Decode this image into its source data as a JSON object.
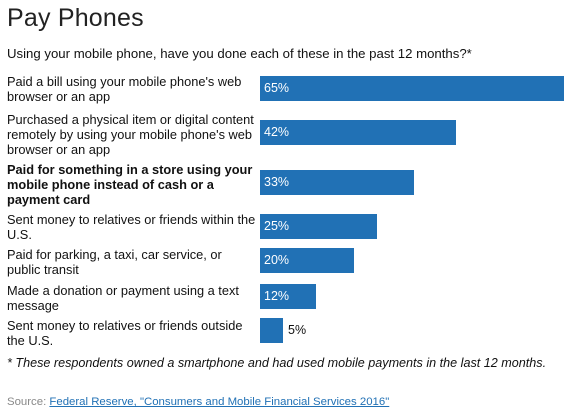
{
  "header": {
    "title": "Pay Phones",
    "subtitle": "Using your mobile phone, have you done each of these in the past 12 months?*"
  },
  "chart_data": {
    "type": "bar",
    "orientation": "horizontal",
    "categories": [
      "Paid a bill using your mobile phone's web browser or an app",
      "Purchased a physical item or digital content remotely by using your mobile phone's web browser or an app",
      "Paid for something in a store using your mobile phone instead of cash or a payment card",
      "Sent money to relatives or friends within the U.S.",
      "Paid for parking, a taxi, car service, or public transit",
      "Made a donation or payment using a text message",
      "Sent money to relatives or friends outside the U.S."
    ],
    "values": [
      65,
      42,
      33,
      25,
      20,
      12,
      5
    ],
    "value_labels": [
      "65%",
      "42%",
      "33%",
      "25%",
      "20%",
      "12%",
      "5%"
    ],
    "highlighted_category": "Paid for something in a store using your mobile phone instead of cash or a payment card",
    "bar_color": "#2171b5",
    "label_color_inside": "#ffffff",
    "label_color_outside": "#111111",
    "xlim": [
      0,
      65
    ],
    "grid": false,
    "legend": "none"
  },
  "footnote": "* These respondents owned a smartphone and had used mobile payments in the last 12 months.",
  "source": {
    "prefix": "Source: ",
    "link_text": "Federal Reserve, \"Consumers and Mobile Financial Services 2016\""
  }
}
